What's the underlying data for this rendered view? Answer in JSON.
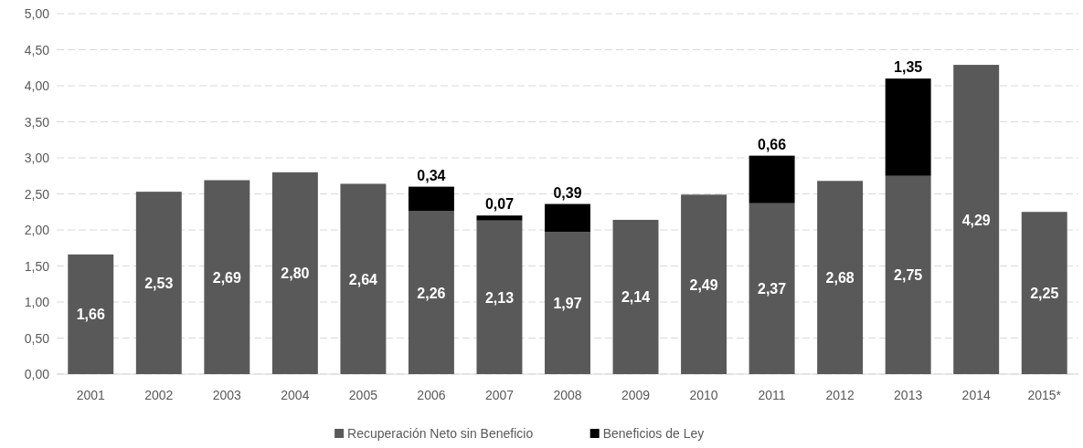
{
  "chart_data": {
    "type": "bar",
    "stacked": true,
    "categories": [
      "2001",
      "2002",
      "2003",
      "2004",
      "2005",
      "2006",
      "2007",
      "2008",
      "2009",
      "2010",
      "2011",
      "2012",
      "2013",
      "2014",
      "2015*"
    ],
    "series": [
      {
        "name": "Recuperación Neto sin Beneficio",
        "color": "#595959",
        "values": [
          1.66,
          2.53,
          2.69,
          2.8,
          2.64,
          2.26,
          2.13,
          1.97,
          2.14,
          2.49,
          2.37,
          2.68,
          2.75,
          4.29,
          2.25
        ],
        "value_labels": [
          "1,66",
          "2,53",
          "2,69",
          "2,80",
          "2,64",
          "2,26",
          "2,13",
          "1,97",
          "2,14",
          "2,49",
          "2,37",
          "2,68",
          "2,75",
          "4,29",
          "2,25"
        ]
      },
      {
        "name": "Beneficios de Ley",
        "color": "#000000",
        "values": [
          null,
          null,
          null,
          null,
          null,
          0.34,
          0.07,
          0.39,
          null,
          null,
          0.66,
          null,
          1.35,
          null,
          null
        ],
        "value_labels": [
          null,
          null,
          null,
          null,
          null,
          "0,34",
          "0,07",
          "0,39",
          null,
          null,
          "0,66",
          null,
          "1,35",
          null,
          null
        ]
      }
    ],
    "ylim": [
      0,
      5
    ],
    "yticks": [
      {
        "value": 0,
        "label": "0,00"
      },
      {
        "value": 0.5,
        "label": "0,50"
      },
      {
        "value": 1,
        "label": "1,00"
      },
      {
        "value": 1.5,
        "label": "1,50"
      },
      {
        "value": 2,
        "label": "2,00"
      },
      {
        "value": 2.5,
        "label": "2,50"
      },
      {
        "value": 3,
        "label": "3,00"
      },
      {
        "value": 3.5,
        "label": "3,50"
      },
      {
        "value": 4,
        "label": "4,00"
      },
      {
        "value": 4.5,
        "label": "4,50"
      },
      {
        "value": 5,
        "label": "5,00"
      }
    ],
    "grid": "y",
    "legend": "bottom"
  }
}
